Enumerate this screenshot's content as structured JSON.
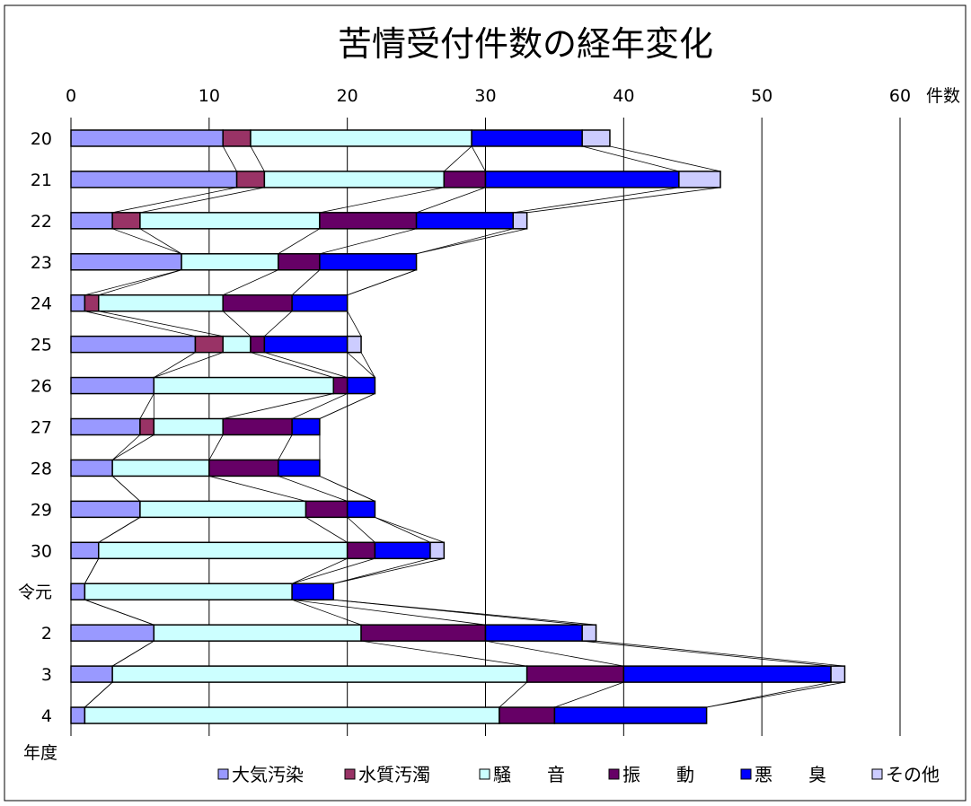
{
  "chart_data": {
    "type": "bar",
    "orientation": "horizontal",
    "stacked": true,
    "title": "苦情受付件数の経年変化",
    "x_unit_label": "件数",
    "y_axis_label": "年度",
    "xlim": [
      0,
      60
    ],
    "x_ticks": [
      "0",
      "10",
      "20",
      "30",
      "40",
      "50",
      "60"
    ],
    "grid": "vertical",
    "legend_position": "bottom",
    "categories": [
      "20",
      "21",
      "22",
      "23",
      "24",
      "25",
      "26",
      "27",
      "28",
      "29",
      "30",
      "令元",
      "2",
      "3",
      "4"
    ],
    "series": [
      {
        "name": "大気汚染",
        "color": "#9999ff",
        "values": [
          11,
          12,
          3,
          8,
          1,
          9,
          6,
          5,
          3,
          5,
          2,
          1,
          6,
          3,
          1
        ]
      },
      {
        "name": "水質汚濁",
        "color": "#993366",
        "values": [
          2,
          2,
          2,
          0,
          1,
          2,
          0,
          1,
          0,
          0,
          0,
          0,
          0,
          0,
          0
        ]
      },
      {
        "name": "騒　　音",
        "color": "#ccffff",
        "values": [
          16,
          13,
          13,
          7,
          9,
          2,
          13,
          5,
          7,
          12,
          18,
          15,
          15,
          30,
          30
        ]
      },
      {
        "name": "振　　動",
        "color": "#660066",
        "values": [
          0,
          3,
          7,
          3,
          5,
          1,
          1,
          5,
          5,
          3,
          2,
          0,
          9,
          7,
          4
        ]
      },
      {
        "name": "悪　　臭",
        "color": "#0000ff",
        "values": [
          8,
          14,
          7,
          7,
          4,
          6,
          2,
          2,
          3,
          2,
          4,
          3,
          7,
          15,
          11
        ]
      },
      {
        "name": "その他",
        "color": "#ccccff",
        "values": [
          2,
          3,
          1,
          0,
          0,
          1,
          0,
          0,
          0,
          0,
          1,
          0,
          1,
          1,
          0
        ]
      }
    ]
  }
}
